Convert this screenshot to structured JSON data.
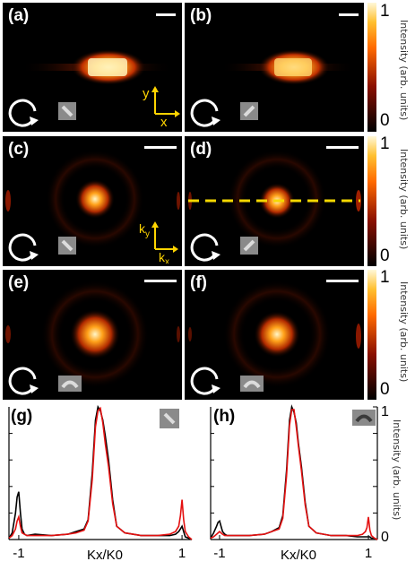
{
  "panels": [
    {
      "label": "(a)",
      "kind": "real"
    },
    {
      "label": "(b)",
      "kind": "real"
    },
    {
      "label": "(c)",
      "kind": "k"
    },
    {
      "label": "(d)",
      "kind": "k"
    },
    {
      "label": "(e)",
      "kind": "k"
    },
    {
      "label": "(f)",
      "kind": "k"
    }
  ],
  "colorbars": [
    {
      "max": "1",
      "min": "0",
      "label": "Intensity (arb. units)"
    },
    {
      "max": "1",
      "min": "0",
      "label": "Intensity (arb. units)"
    },
    {
      "max": "1",
      "min": "0",
      "label": "Intensity (arb. units)"
    }
  ],
  "real_axes": {
    "y": "y",
    "x": "x"
  },
  "k_axes": {
    "y": "k",
    "y_sub": "y",
    "x": "k",
    "x_sub": "x"
  },
  "colors": {
    "axis_yellow": "#ffd400",
    "dash_yellow": "#f5d800",
    "line_red": "#e41010",
    "line_black": "#000000"
  },
  "chart_data": [
    {
      "type": "line",
      "panel": "(g)",
      "xlabel": "Kx/K0",
      "ylabel": "",
      "xticks": [
        "-1",
        "1"
      ],
      "xlim": [
        -1.12,
        1.12
      ],
      "ylim": [
        0,
        1
      ],
      "series": [
        {
          "color": "#000000",
          "x": [
            -1.12,
            -1.08,
            -1.04,
            -1.02,
            -1.0,
            -0.98,
            -0.96,
            -0.93,
            -0.9,
            -0.8,
            -0.6,
            -0.4,
            -0.3,
            -0.2,
            -0.15,
            -0.1,
            -0.06,
            -0.03,
            0.0,
            0.03,
            0.06,
            0.1,
            0.15,
            0.2,
            0.3,
            0.5,
            0.7,
            0.85,
            0.92,
            0.96,
            0.98,
            1.0,
            1.02,
            1.04,
            1.08,
            1.12
          ],
          "y": [
            0.01,
            0.05,
            0.2,
            0.32,
            0.36,
            0.2,
            0.08,
            0.04,
            0.03,
            0.04,
            0.03,
            0.04,
            0.06,
            0.08,
            0.15,
            0.5,
            0.9,
            1.0,
            0.97,
            0.9,
            0.78,
            0.6,
            0.3,
            0.1,
            0.05,
            0.03,
            0.03,
            0.03,
            0.04,
            0.06,
            0.08,
            0.1,
            0.06,
            0.02,
            0.01,
            0.0
          ]
        },
        {
          "color": "#e41010",
          "x": [
            -1.12,
            -1.08,
            -1.04,
            -1.02,
            -1.0,
            -0.98,
            -0.96,
            -0.93,
            -0.9,
            -0.8,
            -0.6,
            -0.4,
            -0.3,
            -0.2,
            -0.15,
            -0.1,
            -0.06,
            -0.03,
            0.0,
            0.03,
            0.06,
            0.1,
            0.15,
            0.2,
            0.3,
            0.5,
            0.7,
            0.85,
            0.92,
            0.96,
            0.98,
            1.0,
            1.02,
            1.04,
            1.08,
            1.12
          ],
          "y": [
            0.01,
            0.03,
            0.08,
            0.14,
            0.17,
            0.1,
            0.05,
            0.04,
            0.03,
            0.03,
            0.03,
            0.04,
            0.05,
            0.07,
            0.14,
            0.45,
            0.85,
            0.97,
            0.99,
            0.88,
            0.72,
            0.55,
            0.27,
            0.1,
            0.05,
            0.03,
            0.03,
            0.04,
            0.06,
            0.1,
            0.18,
            0.3,
            0.15,
            0.06,
            0.02,
            0.0
          ]
        }
      ]
    },
    {
      "type": "line",
      "panel": "(h)",
      "xlabel": "Kx/K0",
      "ylabel": "Intensity (arb. units)",
      "yticks": [
        "1",
        "0"
      ],
      "xticks": [
        "-1",
        "1"
      ],
      "xlim": [
        -1.12,
        1.12
      ],
      "ylim": [
        0,
        1
      ],
      "series": [
        {
          "color": "#000000",
          "x": [
            -1.12,
            -1.08,
            -1.04,
            -1.02,
            -1.0,
            -0.98,
            -0.96,
            -0.93,
            -0.9,
            -0.8,
            -0.6,
            -0.4,
            -0.3,
            -0.2,
            -0.15,
            -0.1,
            -0.06,
            -0.03,
            0.0,
            0.03,
            0.06,
            0.1,
            0.15,
            0.2,
            0.3,
            0.5,
            0.7,
            0.85,
            0.92,
            0.96,
            0.98,
            1.0,
            1.02,
            1.04,
            1.08,
            1.12
          ],
          "y": [
            0.01,
            0.05,
            0.1,
            0.13,
            0.14,
            0.1,
            0.06,
            0.04,
            0.03,
            0.03,
            0.03,
            0.04,
            0.06,
            0.09,
            0.18,
            0.52,
            0.9,
            1.0,
            0.96,
            0.88,
            0.72,
            0.55,
            0.28,
            0.1,
            0.05,
            0.03,
            0.03,
            0.02,
            0.02,
            0.02,
            0.02,
            0.02,
            0.02,
            0.01,
            0.01,
            0.0
          ]
        },
        {
          "color": "#e41010",
          "x": [
            -1.12,
            -1.08,
            -1.04,
            -1.02,
            -1.0,
            -0.98,
            -0.96,
            -0.93,
            -0.9,
            -0.8,
            -0.6,
            -0.4,
            -0.3,
            -0.2,
            -0.15,
            -0.1,
            -0.06,
            -0.03,
            0.0,
            0.03,
            0.06,
            0.1,
            0.15,
            0.2,
            0.3,
            0.5,
            0.7,
            0.85,
            0.92,
            0.96,
            0.98,
            1.0,
            1.02,
            1.04,
            1.08,
            1.12
          ],
          "y": [
            0.01,
            0.02,
            0.04,
            0.05,
            0.06,
            0.05,
            0.04,
            0.03,
            0.03,
            0.03,
            0.03,
            0.04,
            0.06,
            0.08,
            0.16,
            0.48,
            0.86,
            0.98,
            0.98,
            0.85,
            0.7,
            0.52,
            0.26,
            0.1,
            0.05,
            0.03,
            0.03,
            0.03,
            0.04,
            0.06,
            0.09,
            0.17,
            0.07,
            0.03,
            0.01,
            0.0
          ]
        }
      ]
    }
  ]
}
